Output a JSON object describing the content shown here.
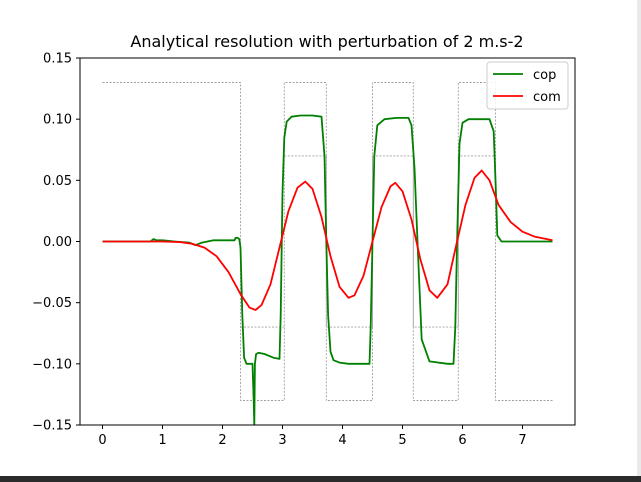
{
  "chart_data": {
    "type": "line",
    "title": "Analytical resolution with perturbation of 2 m.s-2",
    "xlabel": "",
    "ylabel": "",
    "xlim": [
      -0.375,
      7.875
    ],
    "ylim": [
      -0.15,
      0.15
    ],
    "xticks": [
      0,
      1,
      2,
      3,
      4,
      5,
      6,
      7
    ],
    "xtick_labels": [
      "0",
      "1",
      "2",
      "3",
      "4",
      "5",
      "6",
      "7"
    ],
    "yticks": [
      -0.15,
      -0.1,
      -0.05,
      0.0,
      0.05,
      0.1,
      0.15
    ],
    "ytick_labels": [
      "−0.15",
      "−0.10",
      "−0.05",
      "0.00",
      "0.05",
      "0.10",
      "0.15"
    ],
    "grid": false,
    "legend_position": "top-right",
    "series": [
      {
        "name": "cop",
        "color": "#008000",
        "x": [
          0,
          0.8,
          0.85,
          0.9,
          1.0,
          1.2,
          1.45,
          1.5,
          1.55,
          1.65,
          1.75,
          1.85,
          2.0,
          2.2,
          2.22,
          2.25,
          2.28,
          2.3,
          2.33,
          2.36,
          2.4,
          2.45,
          2.5,
          2.52,
          2.53,
          2.54,
          2.56,
          2.6,
          2.7,
          2.85,
          2.95,
          2.97,
          3.0,
          3.03,
          3.07,
          3.15,
          3.3,
          3.5,
          3.65,
          3.7,
          3.73,
          3.76,
          3.8,
          3.85,
          3.95,
          4.1,
          4.3,
          4.45,
          4.47,
          4.5,
          4.53,
          4.58,
          4.7,
          4.9,
          5.1,
          5.15,
          5.2,
          5.25,
          5.32,
          5.45,
          5.75,
          5.85,
          5.88,
          5.91,
          5.95,
          6.0,
          6.1,
          6.3,
          6.45,
          6.52,
          6.55,
          6.58,
          6.65,
          6.8,
          7.5
        ],
        "y": [
          0,
          0,
          0.002,
          0.001,
          0.001,
          0.0,
          -0.001,
          -0.002,
          -0.003,
          -0.001,
          0.0,
          0.001,
          0.001,
          0.001,
          0.003,
          0.003,
          0.002,
          -0.005,
          -0.06,
          -0.095,
          -0.1,
          -0.1,
          -0.1,
          -0.13,
          -0.15,
          -0.1,
          -0.092,
          -0.091,
          -0.092,
          -0.095,
          -0.096,
          -0.06,
          0.04,
          0.085,
          0.098,
          0.102,
          0.103,
          0.103,
          0.102,
          0.07,
          0.0,
          -0.06,
          -0.09,
          -0.097,
          -0.099,
          -0.1,
          -0.1,
          -0.1,
          -0.07,
          0.0,
          0.07,
          0.095,
          0.1,
          0.101,
          0.101,
          0.095,
          0.06,
          0.0,
          -0.08,
          -0.098,
          -0.1,
          -0.1,
          -0.07,
          0.0,
          0.08,
          0.097,
          0.1,
          0.1,
          0.1,
          0.09,
          0.05,
          0.005,
          0.0,
          0.0,
          0.0
        ]
      },
      {
        "name": "com",
        "color": "#ff0000",
        "x": [
          0,
          0.5,
          1.0,
          1.3,
          1.5,
          1.7,
          1.9,
          2.1,
          2.3,
          2.45,
          2.55,
          2.65,
          2.8,
          2.95,
          3.1,
          3.25,
          3.38,
          3.5,
          3.65,
          3.8,
          3.95,
          4.1,
          4.2,
          4.35,
          4.5,
          4.65,
          4.8,
          4.88,
          5.0,
          5.15,
          5.3,
          5.45,
          5.58,
          5.75,
          5.9,
          6.05,
          6.2,
          6.32,
          6.45,
          6.6,
          6.8,
          7.0,
          7.2,
          7.5
        ],
        "y": [
          0,
          0,
          0,
          -0.0005,
          -0.002,
          -0.005,
          -0.012,
          -0.025,
          -0.043,
          -0.054,
          -0.056,
          -0.052,
          -0.035,
          -0.005,
          0.025,
          0.044,
          0.049,
          0.043,
          0.02,
          -0.012,
          -0.037,
          -0.046,
          -0.044,
          -0.028,
          0.0,
          0.028,
          0.045,
          0.048,
          0.041,
          0.018,
          -0.015,
          -0.04,
          -0.046,
          -0.035,
          -0.002,
          0.03,
          0.052,
          0.058,
          0.05,
          0.03,
          0.016,
          0.008,
          0.004,
          0.001
        ]
      },
      {
        "name": "",
        "color": "#a0a0a0",
        "dashed": true,
        "x": [
          0,
          2.3,
          2.3,
          3.03,
          3.03,
          3.73,
          3.73,
          4.5,
          4.5,
          5.18,
          5.18,
          5.93,
          5.93,
          6.55,
          6.55,
          7.5
        ],
        "y": [
          0.13,
          0.13,
          -0.13,
          -0.13,
          0.13,
          0.13,
          -0.13,
          -0.13,
          0.13,
          0.13,
          -0.13,
          -0.13,
          0.13,
          0.13,
          -0.13,
          -0.13
        ]
      },
      {
        "name": "",
        "color": "#a0a0a0",
        "dashed": true,
        "x": [
          3.03,
          3.73,
          3.73,
          4.5,
          4.5,
          5.18,
          5.18,
          5.93,
          5.93,
          6.55
        ],
        "y": [
          0.07,
          0.07,
          -0.07,
          -0.07,
          0.07,
          0.07,
          -0.07,
          -0.07,
          0.07,
          0.07
        ]
      },
      {
        "name": "",
        "color": "#a0a0a0",
        "dashed": true,
        "x": [
          2.3,
          3.03
        ],
        "y": [
          -0.07,
          -0.07
        ]
      }
    ]
  }
}
